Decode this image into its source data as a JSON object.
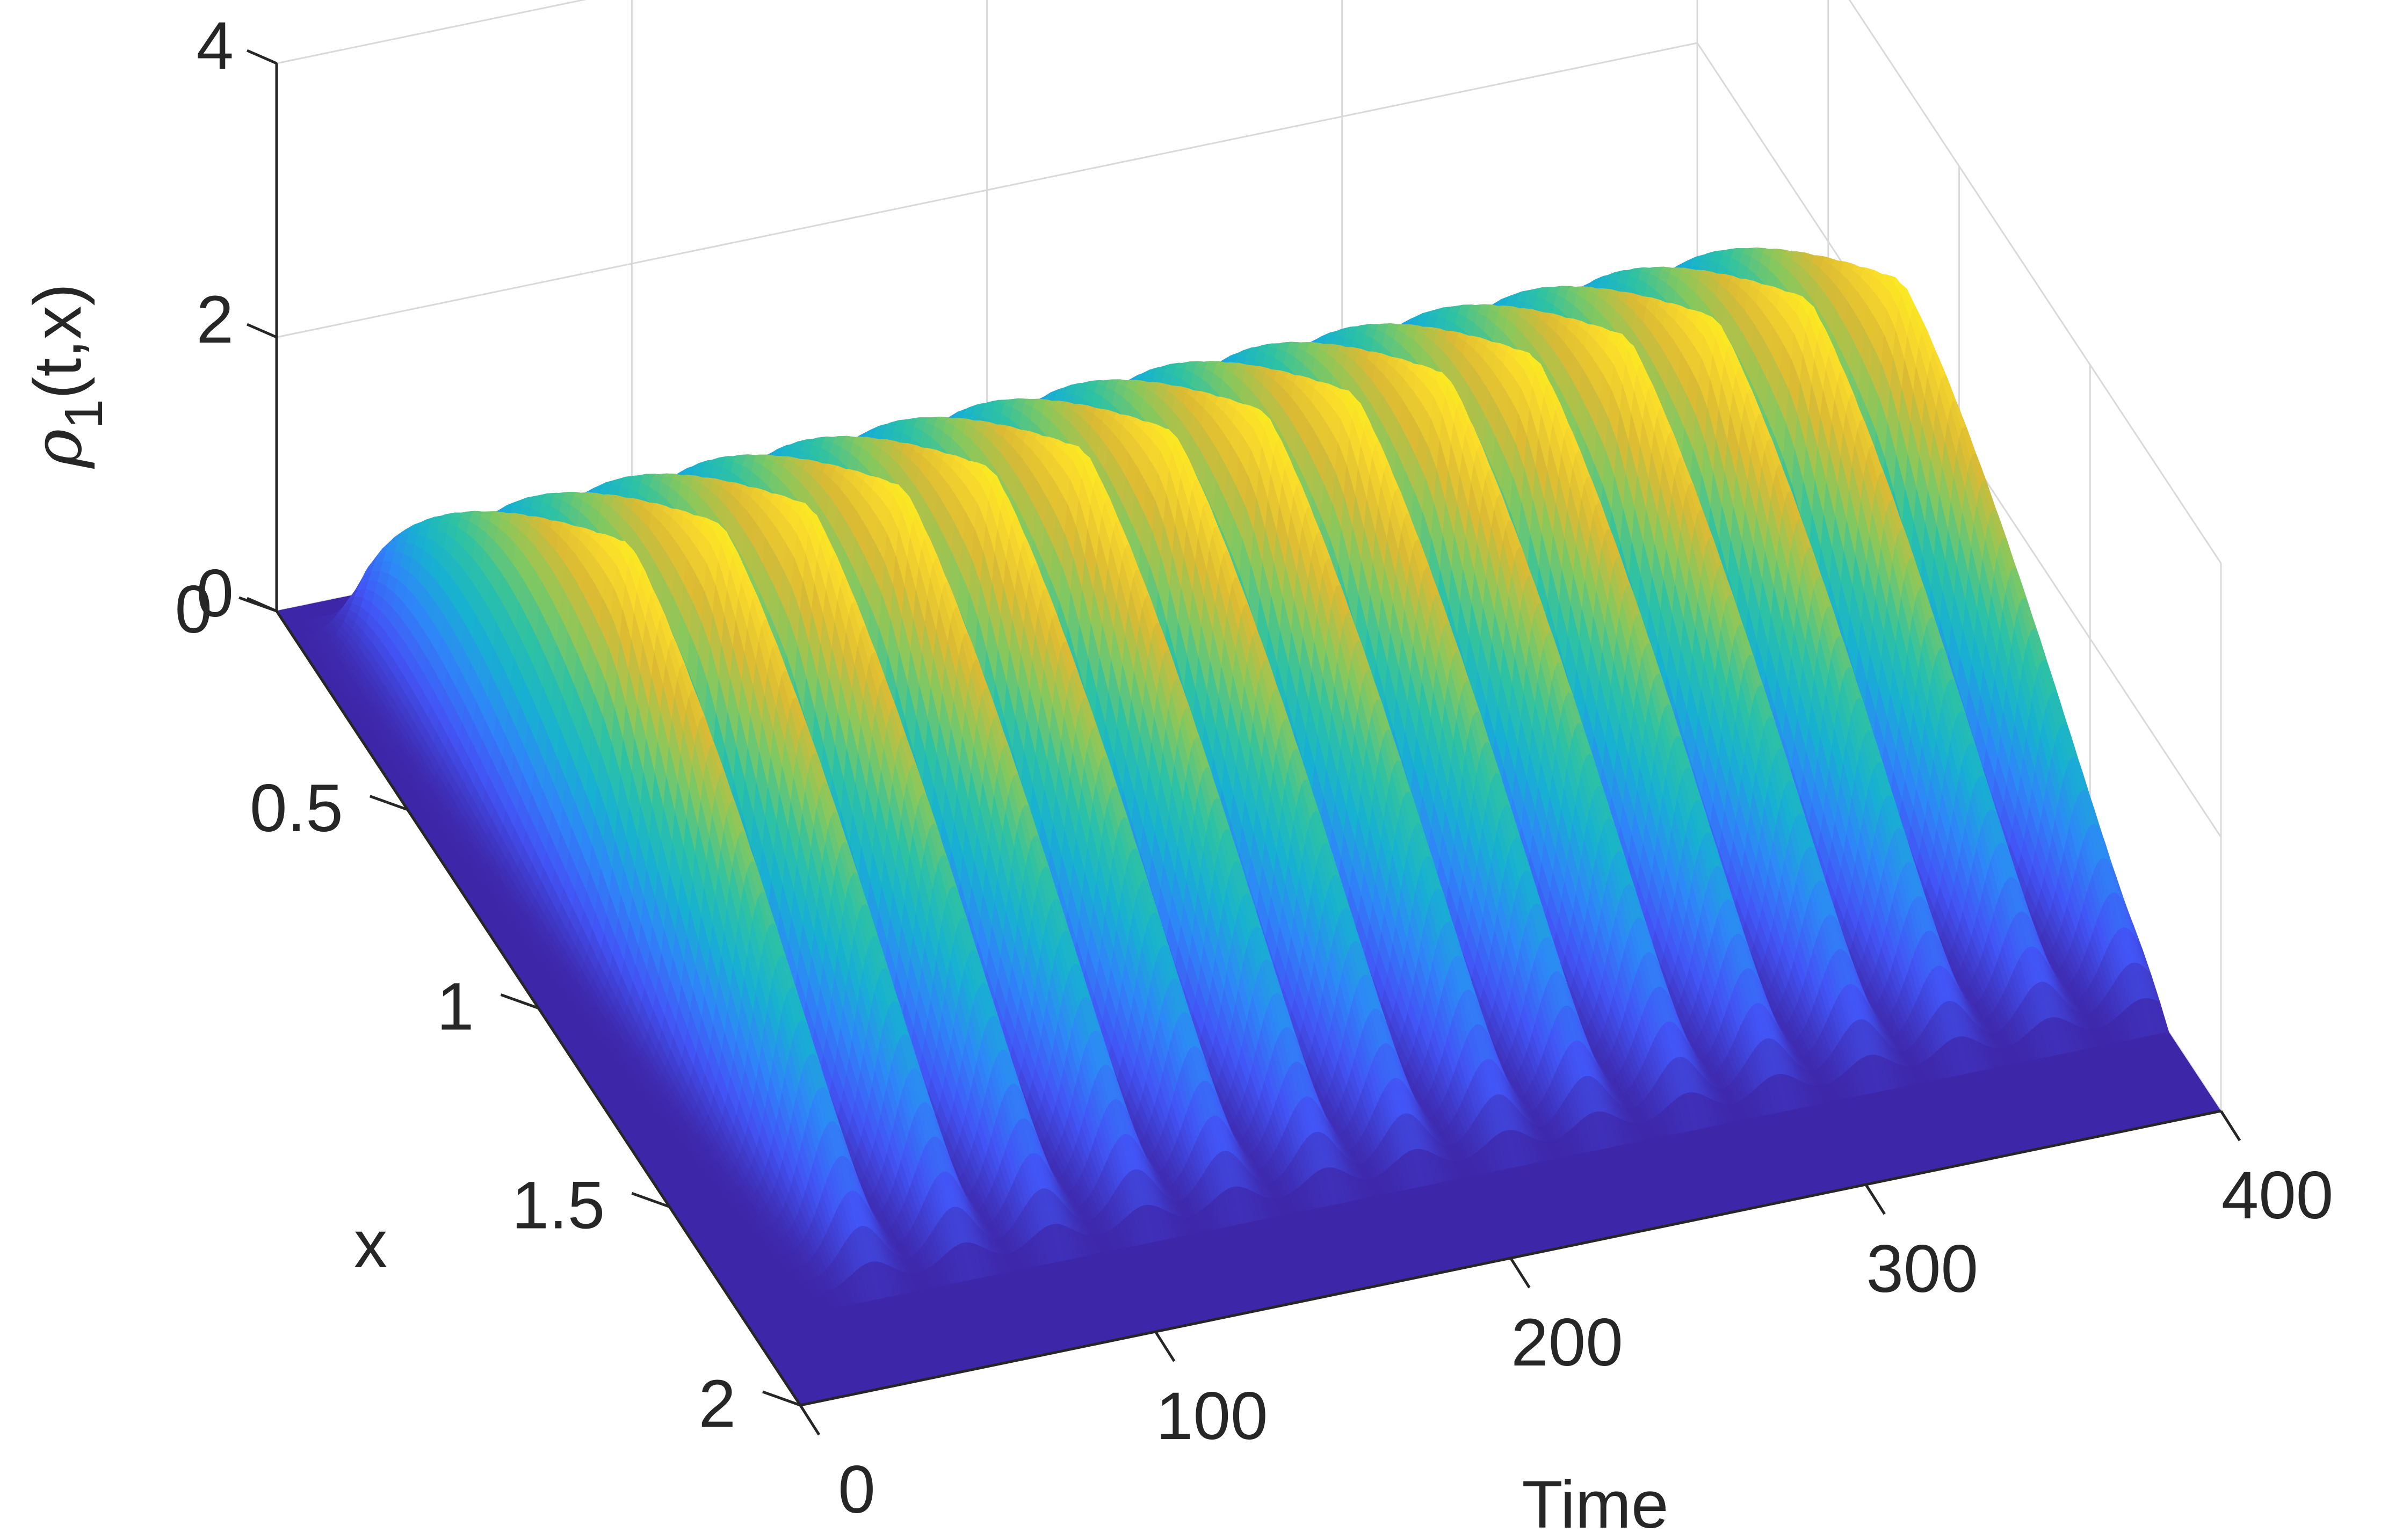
{
  "chart_data": {
    "type": "surface",
    "title": "",
    "xlabel": "Time",
    "ylabel": "x",
    "zlabel": "ρ1(t,x)",
    "zlabel_parts": {
      "symbol": "ρ",
      "subscript": "1",
      "args": "(t,x)"
    },
    "xlim": [
      0,
      400
    ],
    "ylim": [
      0,
      2
    ],
    "zlim": [
      0,
      4
    ],
    "xticks": [
      "0",
      "100",
      "200",
      "300",
      "400"
    ],
    "yticks": [
      "0",
      "0.5",
      "1",
      "1.5",
      "2"
    ],
    "zticks": [
      "0",
      "2",
      "4"
    ],
    "xtick_values": [
      0,
      100,
      200,
      300,
      400
    ],
    "ytick_values": [
      0,
      0.5,
      1,
      1.5,
      2
    ],
    "ztick_values": [
      0,
      2,
      4
    ],
    "grid": true,
    "colormap": "parula",
    "colormap_stops": [
      "#3e26a8",
      "#4255f6",
      "#2e87f7",
      "#17b1d1",
      "#2ec2a3",
      "#85c85e",
      "#dbba34",
      "#fadb2b",
      "#f9fb15"
    ],
    "wave": {
      "num_peaks": 15,
      "peak_times": [
        20,
        46,
        71,
        97,
        122,
        148,
        173,
        199,
        224,
        250,
        275,
        301,
        326,
        352,
        378
      ],
      "peak_height": 3.1,
      "front_x_peak": 0.95,
      "back_x": 0.05,
      "front_x_decay_end": 1.8,
      "period": 25.5
    }
  }
}
